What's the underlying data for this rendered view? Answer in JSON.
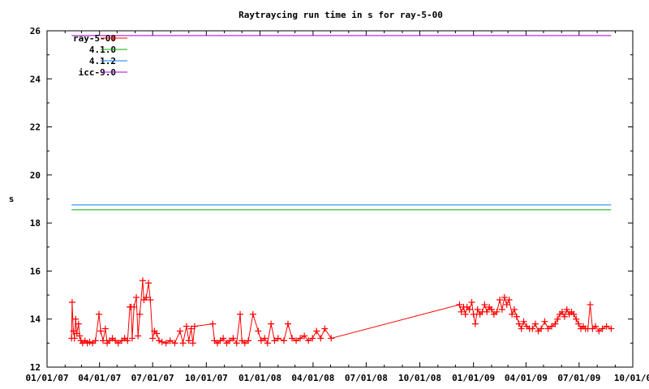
{
  "chart_data": {
    "type": "line",
    "title": "Raytraycing run time in s for ray-5-00",
    "xlabel": "",
    "ylabel": "s",
    "x_type": "date",
    "xlim": [
      "2007-01-01",
      "2009-10-01"
    ],
    "ylim": [
      12,
      26
    ],
    "x_ticks": [
      "01/01/07",
      "04/01/07",
      "07/01/07",
      "10/01/07",
      "01/01/08",
      "04/01/08",
      "07/01/08",
      "10/01/08",
      "01/01/09",
      "04/01/09",
      "07/01/09",
      "10/01/0"
    ],
    "x_tick_dates": [
      "2007-01-01",
      "2007-04-01",
      "2007-07-01",
      "2007-10-01",
      "2008-01-01",
      "2008-04-01",
      "2008-07-01",
      "2008-10-01",
      "2009-01-01",
      "2009-04-01",
      "2009-07-01",
      "2009-10-01"
    ],
    "y_ticks": [
      12,
      14,
      16,
      18,
      20,
      22,
      24,
      26
    ],
    "grid": false,
    "legend_placement": "top-left",
    "series": [
      {
        "name": "ray-5-00",
        "color": "#ff0000",
        "style": "linespoints",
        "marker": "plus",
        "points": [
          [
            "2007-02-12",
            13.2
          ],
          [
            "2007-02-13",
            14.7
          ],
          [
            "2007-02-15",
            13.5
          ],
          [
            "2007-02-17",
            13.2
          ],
          [
            "2007-02-19",
            14.0
          ],
          [
            "2007-02-21",
            13.4
          ],
          [
            "2007-02-24",
            13.8
          ],
          [
            "2007-02-26",
            13.3
          ],
          [
            "2007-02-28",
            13.1
          ],
          [
            "2007-03-03",
            13.0
          ],
          [
            "2007-03-07",
            13.1
          ],
          [
            "2007-03-11",
            13.0
          ],
          [
            "2007-03-15",
            13.05
          ],
          [
            "2007-03-20",
            13.0
          ],
          [
            "2007-03-25",
            13.1
          ],
          [
            "2007-03-31",
            14.2
          ],
          [
            "2007-04-03",
            13.5
          ],
          [
            "2007-04-07",
            13.1
          ],
          [
            "2007-04-11",
            13.6
          ],
          [
            "2007-04-14",
            13.0
          ],
          [
            "2007-04-18",
            13.1
          ],
          [
            "2007-04-23",
            13.2
          ],
          [
            "2007-04-28",
            13.1
          ],
          [
            "2007-05-03",
            13.0
          ],
          [
            "2007-05-09",
            13.1
          ],
          [
            "2007-05-14",
            13.2
          ],
          [
            "2007-05-19",
            13.1
          ],
          [
            "2007-05-23",
            14.5
          ],
          [
            "2007-05-25",
            14.5
          ],
          [
            "2007-05-27",
            13.2
          ],
          [
            "2007-05-30",
            14.5
          ],
          [
            "2007-06-03",
            14.9
          ],
          [
            "2007-06-06",
            13.3
          ],
          [
            "2007-06-09",
            14.2
          ],
          [
            "2007-06-14",
            15.6
          ],
          [
            "2007-06-16",
            14.8
          ],
          [
            "2007-06-20",
            14.9
          ],
          [
            "2007-06-24",
            15.5
          ],
          [
            "2007-06-27",
            14.8
          ],
          [
            "2007-07-01",
            13.2
          ],
          [
            "2007-07-04",
            13.5
          ],
          [
            "2007-07-08",
            13.4
          ],
          [
            "2007-07-12",
            13.1
          ],
          [
            "2007-07-17",
            13.05
          ],
          [
            "2007-07-24",
            13.0
          ],
          [
            "2007-07-31",
            13.1
          ],
          [
            "2007-08-08",
            13.0
          ],
          [
            "2007-08-17",
            13.5
          ],
          [
            "2007-08-22",
            13.0
          ],
          [
            "2007-08-28",
            13.7
          ],
          [
            "2007-09-01",
            13.1
          ],
          [
            "2007-09-05",
            13.6
          ],
          [
            "2007-09-08",
            13.0
          ],
          [
            "2007-09-11",
            13.7
          ],
          [
            "2007-10-12",
            13.8
          ],
          [
            "2007-10-15",
            13.1
          ],
          [
            "2007-10-20",
            13.0
          ],
          [
            "2007-10-25",
            13.1
          ],
          [
            "2007-10-30",
            13.2
          ],
          [
            "2007-11-05",
            13.0
          ],
          [
            "2007-11-10",
            13.1
          ],
          [
            "2007-11-16",
            13.2
          ],
          [
            "2007-11-22",
            13.0
          ],
          [
            "2007-11-28",
            14.2
          ],
          [
            "2007-12-01",
            13.1
          ],
          [
            "2007-12-06",
            13.0
          ],
          [
            "2007-12-12",
            13.1
          ],
          [
            "2007-12-20",
            14.2
          ],
          [
            "2007-12-29",
            13.5
          ],
          [
            "2008-01-03",
            13.1
          ],
          [
            "2008-01-09",
            13.2
          ],
          [
            "2008-01-14",
            13.0
          ],
          [
            "2008-01-20",
            13.8
          ],
          [
            "2008-01-26",
            13.1
          ],
          [
            "2008-02-01",
            13.2
          ],
          [
            "2008-02-11",
            13.1
          ],
          [
            "2008-02-18",
            13.8
          ],
          [
            "2008-02-25",
            13.2
          ],
          [
            "2008-03-03",
            13.1
          ],
          [
            "2008-03-10",
            13.2
          ],
          [
            "2008-03-17",
            13.3
          ],
          [
            "2008-03-24",
            13.1
          ],
          [
            "2008-03-31",
            13.2
          ],
          [
            "2008-04-07",
            13.5
          ],
          [
            "2008-04-14",
            13.2
          ],
          [
            "2008-04-21",
            13.6
          ],
          [
            "2008-05-02",
            13.2
          ],
          [
            "2008-12-08",
            14.6
          ],
          [
            "2008-12-11",
            14.3
          ],
          [
            "2008-12-15",
            14.5
          ],
          [
            "2008-12-18",
            14.2
          ],
          [
            "2008-12-21",
            14.5
          ],
          [
            "2008-12-25",
            14.4
          ],
          [
            "2008-12-29",
            14.7
          ],
          [
            "2009-01-01",
            14.2
          ],
          [
            "2009-01-04",
            13.8
          ],
          [
            "2009-01-08",
            14.4
          ],
          [
            "2009-01-12",
            14.2
          ],
          [
            "2009-01-16",
            14.3
          ],
          [
            "2009-01-20",
            14.6
          ],
          [
            "2009-01-24",
            14.3
          ],
          [
            "2009-01-28",
            14.5
          ],
          [
            "2009-02-01",
            14.4
          ],
          [
            "2009-02-05",
            14.2
          ],
          [
            "2009-02-10",
            14.3
          ],
          [
            "2009-02-15",
            14.8
          ],
          [
            "2009-02-19",
            14.4
          ],
          [
            "2009-02-23",
            14.9
          ],
          [
            "2009-02-27",
            14.6
          ],
          [
            "2009-03-03",
            14.8
          ],
          [
            "2009-03-08",
            14.2
          ],
          [
            "2009-03-12",
            14.4
          ],
          [
            "2009-03-16",
            14.1
          ],
          [
            "2009-03-20",
            13.8
          ],
          [
            "2009-03-24",
            13.6
          ],
          [
            "2009-03-28",
            13.9
          ],
          [
            "2009-04-02",
            13.7
          ],
          [
            "2009-04-07",
            13.6
          ],
          [
            "2009-04-12",
            13.6
          ],
          [
            "2009-04-17",
            13.8
          ],
          [
            "2009-04-22",
            13.5
          ],
          [
            "2009-04-27",
            13.6
          ],
          [
            "2009-05-03",
            13.9
          ],
          [
            "2009-05-09",
            13.6
          ],
          [
            "2009-05-15",
            13.7
          ],
          [
            "2009-05-21",
            13.8
          ],
          [
            "2009-05-25",
            14.0
          ],
          [
            "2009-05-29",
            14.2
          ],
          [
            "2009-06-02",
            14.3
          ],
          [
            "2009-06-06",
            14.1
          ],
          [
            "2009-06-10",
            14.4
          ],
          [
            "2009-06-14",
            14.2
          ],
          [
            "2009-06-18",
            14.3
          ],
          [
            "2009-06-22",
            14.2
          ],
          [
            "2009-06-26",
            14.0
          ],
          [
            "2009-06-30",
            13.8
          ],
          [
            "2009-07-04",
            13.6
          ],
          [
            "2009-07-08",
            13.7
          ],
          [
            "2009-07-12",
            13.6
          ],
          [
            "2009-07-16",
            13.6
          ],
          [
            "2009-07-20",
            14.6
          ],
          [
            "2009-07-24",
            13.6
          ],
          [
            "2009-07-29",
            13.7
          ],
          [
            "2009-08-04",
            13.5
          ],
          [
            "2009-08-10",
            13.6
          ],
          [
            "2009-08-17",
            13.7
          ],
          [
            "2009-08-25",
            13.6
          ]
        ]
      },
      {
        "name": "4.1.0",
        "color": "#00b000",
        "style": "lines",
        "points": [
          [
            "2007-02-12",
            18.55
          ],
          [
            "2009-08-25",
            18.55
          ]
        ]
      },
      {
        "name": "4.1.2",
        "color": "#0080ff",
        "style": "lines",
        "points": [
          [
            "2007-02-12",
            18.75
          ],
          [
            "2009-08-25",
            18.75
          ]
        ]
      },
      {
        "name": "icc-9.0",
        "color": "#a000e0",
        "style": "lines",
        "points": [
          [
            "2007-02-12",
            25.8
          ],
          [
            "2009-08-25",
            25.8
          ]
        ]
      }
    ]
  }
}
